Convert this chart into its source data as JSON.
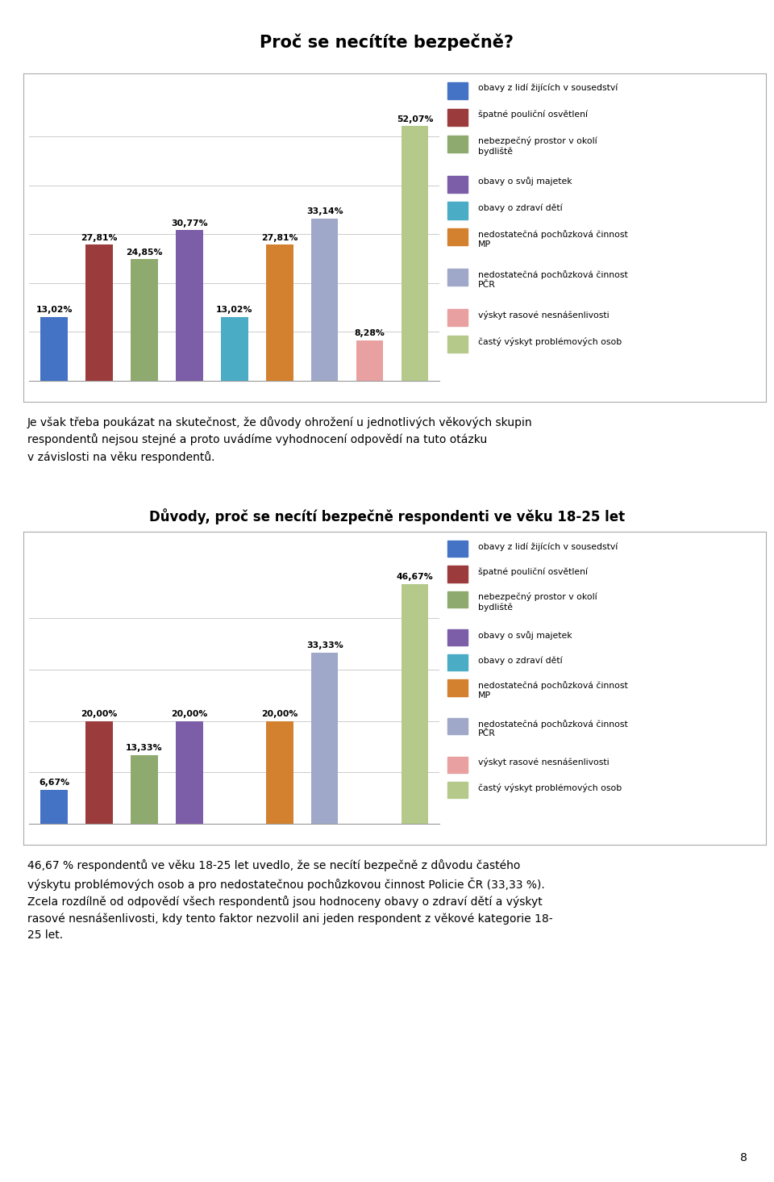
{
  "title1": "Proč se necítíte bezpečně?",
  "title2": "Důvody, proč se necítí bezpečně respondenti ve věku 18-25 let",
  "chart1": {
    "values": [
      13.02,
      27.81,
      24.85,
      30.77,
      13.02,
      27.81,
      33.14,
      8.28,
      52.07
    ],
    "labels": [
      "13,02%",
      "27,81%",
      "24,85%",
      "30,77%",
      "13,02%",
      "27,81%",
      "33,14%",
      "8,28%",
      "52,07%"
    ],
    "colors": [
      "#4472C4",
      "#9C3B3B",
      "#8faa6e",
      "#7B5EA7",
      "#4bacc6",
      "#D4812F",
      "#9FA8C8",
      "#E8A0A0",
      "#b5c98a"
    ]
  },
  "chart2": {
    "values": [
      6.67,
      20.0,
      13.33,
      20.0,
      0.0,
      20.0,
      33.33,
      0.0,
      46.67
    ],
    "labels": [
      "6,67%",
      "20,00%",
      "13,33%",
      "20,00%",
      "",
      "20,00%",
      "33,33%",
      "",
      "46,67%"
    ],
    "colors": [
      "#4472C4",
      "#9C3B3B",
      "#8faa6e",
      "#7B5EA7",
      "#4bacc6",
      "#D4812F",
      "#9FA8C8",
      "#E8A0A0",
      "#b5c98a"
    ]
  },
  "legend_labels": [
    "obavy z lidí žijících v sousedství",
    "špatné pouliční osvětlení",
    "nebezpečný prostor v okolí\nbydliště",
    "obavy o svůj majetek",
    "obavy o zdraví dětí",
    "nedostatečná pochůzková činnost\nMP",
    "nedostatečná pochůzková činnost\nPČR",
    "výskyt rasové nesnášenlivosti",
    "častý výskyt problémových osob"
  ],
  "legend_colors": [
    "#4472C4",
    "#9C3B3B",
    "#8faa6e",
    "#7B5EA7",
    "#4bacc6",
    "#D4812F",
    "#9FA8C8",
    "#E8A0A0",
    "#b5c98a"
  ],
  "para1": "Je však třeba poukázat na skutečnost, že důvody ohrožení u jednotlivých věkových skupin\nrespondentů nejsou stejné a proto uvádíme vyhodnocení odpovědí na tuto otázku\nv závislosti na věku respondentů.",
  "para2": "46,67 % respondentů ve věku 18-25 let uvedlo, že se necítí bezpečně z důvodu častého\nvýskytu problémových osob a pro nedostatečnou pochůzkovou činnost Policie ČR (33,33 %).\nZcela rozdílně od odpovědí všech respondentů jsou hodnoceny obavy o zdraví dětí a výskyt\nrasové nesnášenlivosti, kdy tento faktor nezvolil ani jeden respondent z věkové kategorie 18-\n25 let.",
  "page_num": "8",
  "ylim1": [
    0,
    60
  ],
  "ylim2": [
    0,
    54
  ],
  "bar_width": 0.6
}
